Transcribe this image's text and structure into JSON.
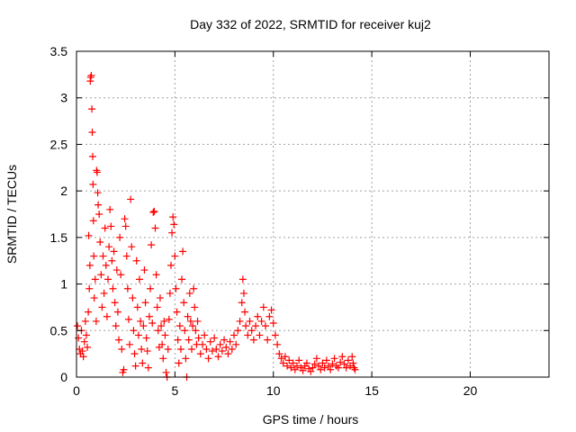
{
  "chart_data": {
    "type": "scatter",
    "title": "Day 332 of 2022, SRMTID for receiver kuj2",
    "xlabel": "GPS time / hours",
    "ylabel": "SRMTID / TECUs",
    "xlim": [
      0,
      24
    ],
    "ylim": [
      0,
      3.5
    ],
    "grid": true,
    "marker": "+",
    "colors": {
      "series": "#ff0000",
      "grid": "#a0a0a0",
      "axis": "#000000"
    },
    "x_ticks": [
      {
        "value": 0,
        "label": "0"
      },
      {
        "value": 5,
        "label": "5"
      },
      {
        "value": 10,
        "label": "10"
      },
      {
        "value": 15,
        "label": "15"
      },
      {
        "value": 20,
        "label": "20"
      }
    ],
    "y_ticks": [
      {
        "value": 0,
        "label": "0"
      },
      {
        "value": 0.5,
        "label": "0.5"
      },
      {
        "value": 1,
        "label": "1"
      },
      {
        "value": 1.5,
        "label": "1.5"
      },
      {
        "value": 2,
        "label": "2"
      },
      {
        "value": 2.5,
        "label": "2.5"
      },
      {
        "value": 3,
        "label": "3"
      },
      {
        "value": 3.5,
        "label": "3.5"
      }
    ],
    "series": [
      {
        "name": "SRMTID",
        "points": [
          [
            0.05,
            0.55
          ],
          [
            0.1,
            0.42
          ],
          [
            0.15,
            0.3
          ],
          [
            0.2,
            0.25
          ],
          [
            0.25,
            0.5
          ],
          [
            0.3,
            0.28
          ],
          [
            0.35,
            0.22
          ],
          [
            0.4,
            0.38
          ],
          [
            0.45,
            0.6
          ],
          [
            0.5,
            0.45
          ],
          [
            0.55,
            0.32
          ],
          [
            0.6,
            0.7
          ],
          [
            0.62,
            1.52
          ],
          [
            0.65,
            0.95
          ],
          [
            0.68,
            1.2
          ],
          [
            0.7,
            3.18
          ],
          [
            0.72,
            3.22
          ],
          [
            0.75,
            3.24
          ],
          [
            0.78,
            2.88
          ],
          [
            0.8,
            2.63
          ],
          [
            0.82,
            2.37
          ],
          [
            0.84,
            2.07
          ],
          [
            0.86,
            1.68
          ],
          [
            0.88,
            1.3
          ],
          [
            0.9,
            0.85
          ],
          [
            0.95,
            1.05
          ],
          [
            1.0,
            0.6
          ],
          [
            1.02,
            2.22
          ],
          [
            1.05,
            2.2
          ],
          [
            1.08,
            1.98
          ],
          [
            1.1,
            1.85
          ],
          [
            1.15,
            1.75
          ],
          [
            1.2,
            1.45
          ],
          [
            1.25,
            1.1
          ],
          [
            1.3,
            0.75
          ],
          [
            1.35,
            1.3
          ],
          [
            1.4,
            0.9
          ],
          [
            1.45,
            1.6
          ],
          [
            1.5,
            1.2
          ],
          [
            1.55,
            0.65
          ],
          [
            1.6,
            1.05
          ],
          [
            1.65,
            1.4
          ],
          [
            1.7,
            1.8
          ],
          [
            1.75,
            1.62
          ],
          [
            1.8,
            1.25
          ],
          [
            1.85,
            0.95
          ],
          [
            1.9,
            1.35
          ],
          [
            1.95,
            0.8
          ],
          [
            2.0,
            0.55
          ],
          [
            2.05,
            1.15
          ],
          [
            2.1,
            0.7
          ],
          [
            2.15,
            0.4
          ],
          [
            2.2,
            1.5
          ],
          [
            2.25,
            1.1
          ],
          [
            2.3,
            0.3
          ],
          [
            2.35,
            0.05
          ],
          [
            2.4,
            0.08
          ],
          [
            2.45,
            1.7
          ],
          [
            2.5,
            1.62
          ],
          [
            2.55,
            1.3
          ],
          [
            2.6,
            0.95
          ],
          [
            2.65,
            0.62
          ],
          [
            2.7,
            0.35
          ],
          [
            2.75,
            1.91
          ],
          [
            2.8,
            1.4
          ],
          [
            2.85,
            0.85
          ],
          [
            2.9,
            0.5
          ],
          [
            2.95,
            0.25
          ],
          [
            3.0,
            0.12
          ],
          [
            3.05,
            1.25
          ],
          [
            3.1,
            0.75
          ],
          [
            3.15,
            0.45
          ],
          [
            3.2,
            1.05
          ],
          [
            3.25,
            0.6
          ],
          [
            3.3,
            0.3
          ],
          [
            3.35,
            0.15
          ],
          [
            3.4,
            0.55
          ],
          [
            3.45,
            1.15
          ],
          [
            3.5,
            0.8
          ],
          [
            3.55,
            0.42
          ],
          [
            3.6,
            0.28
          ],
          [
            3.65,
            0.1
          ],
          [
            3.7,
            0.65
          ],
          [
            3.75,
            0.95
          ],
          [
            3.8,
            1.42
          ],
          [
            3.85,
            0.58
          ],
          [
            3.9,
            1.77
          ],
          [
            3.95,
            1.78
          ],
          [
            4.0,
            1.6
          ],
          [
            4.05,
            1.1
          ],
          [
            4.1,
            0.75
          ],
          [
            4.15,
            0.5
          ],
          [
            4.2,
            0.32
          ],
          [
            4.25,
            0.85
          ],
          [
            4.3,
            0.55
          ],
          [
            4.35,
            0.35
          ],
          [
            4.4,
            0.2
          ],
          [
            4.45,
            0.6
          ],
          [
            4.5,
            0.45
          ],
          [
            4.55,
            0.05
          ],
          [
            4.6,
            0.0
          ],
          [
            4.65,
            0.3
          ],
          [
            4.7,
            0.62
          ],
          [
            4.75,
            0.9
          ],
          [
            4.8,
            1.2
          ],
          [
            4.85,
            1.55
          ],
          [
            4.9,
            1.72
          ],
          [
            4.95,
            1.64
          ],
          [
            5.0,
            1.3
          ],
          [
            5.05,
            0.95
          ],
          [
            5.1,
            0.7
          ],
          [
            5.15,
            0.4
          ],
          [
            5.2,
            0.15
          ],
          [
            5.25,
            0.55
          ],
          [
            5.3,
            0.3
          ],
          [
            5.35,
            1.05
          ],
          [
            5.4,
            1.35
          ],
          [
            5.45,
            0.8
          ],
          [
            5.5,
            0.5
          ],
          [
            5.55,
            0.2
          ],
          [
            5.6,
            0.0
          ],
          [
            5.65,
            0.65
          ],
          [
            5.7,
            0.4
          ],
          [
            5.75,
            0.9
          ],
          [
            5.8,
            0.6
          ],
          [
            5.85,
            0.3
          ],
          [
            5.9,
            0.55
          ],
          [
            5.95,
            0.95
          ],
          [
            6.0,
            0.75
          ],
          [
            6.05,
            0.5
          ],
          [
            6.1,
            0.35
          ],
          [
            6.15,
            0.6
          ],
          [
            6.2,
            0.42
          ],
          [
            6.3,
            0.25
          ],
          [
            6.4,
            0.35
          ],
          [
            6.5,
            0.45
          ],
          [
            6.6,
            0.3
          ],
          [
            6.7,
            0.2
          ],
          [
            6.8,
            0.38
          ],
          [
            6.9,
            0.28
          ],
          [
            7.0,
            0.42
          ],
          [
            7.1,
            0.3
          ],
          [
            7.2,
            0.22
          ],
          [
            7.3,
            0.35
          ],
          [
            7.4,
            0.28
          ],
          [
            7.5,
            0.4
          ],
          [
            7.6,
            0.32
          ],
          [
            7.7,
            0.25
          ],
          [
            7.8,
            0.38
          ],
          [
            7.9,
            0.3
          ],
          [
            8.0,
            0.45
          ],
          [
            8.1,
            0.35
          ],
          [
            8.2,
            0.5
          ],
          [
            8.3,
            0.6
          ],
          [
            8.4,
            0.8
          ],
          [
            8.45,
            1.05
          ],
          [
            8.5,
            0.9
          ],
          [
            8.55,
            0.7
          ],
          [
            8.6,
            0.55
          ],
          [
            8.7,
            0.45
          ],
          [
            8.8,
            0.6
          ],
          [
            8.9,
            0.5
          ],
          [
            9.0,
            0.4
          ],
          [
            9.1,
            0.55
          ],
          [
            9.2,
            0.65
          ],
          [
            9.3,
            0.45
          ],
          [
            9.4,
            0.6
          ],
          [
            9.5,
            0.75
          ],
          [
            9.6,
            0.55
          ],
          [
            9.7,
            0.4
          ],
          [
            9.8,
            0.65
          ],
          [
            9.9,
            0.72
          ],
          [
            10.0,
            0.58
          ],
          [
            10.1,
            0.45
          ],
          [
            10.2,
            0.35
          ],
          [
            10.3,
            0.25
          ],
          [
            10.4,
            0.2
          ],
          [
            10.5,
            0.15
          ],
          [
            10.6,
            0.22
          ],
          [
            10.7,
            0.12
          ],
          [
            10.8,
            0.18
          ],
          [
            10.9,
            0.1
          ],
          [
            11.0,
            0.15
          ],
          [
            11.1,
            0.08
          ],
          [
            11.2,
            0.12
          ],
          [
            11.3,
            0.18
          ],
          [
            11.4,
            0.1
          ],
          [
            11.5,
            0.07
          ],
          [
            11.6,
            0.12
          ],
          [
            11.7,
            0.15
          ],
          [
            11.8,
            0.09
          ],
          [
            11.9,
            0.06
          ],
          [
            12.0,
            0.1
          ],
          [
            12.1,
            0.14
          ],
          [
            12.2,
            0.2
          ],
          [
            12.3,
            0.12
          ],
          [
            12.4,
            0.08
          ],
          [
            12.5,
            0.15
          ],
          [
            12.6,
            0.1
          ],
          [
            12.7,
            0.18
          ],
          [
            12.8,
            0.12
          ],
          [
            12.9,
            0.08
          ],
          [
            13.0,
            0.14
          ],
          [
            13.1,
            0.2
          ],
          [
            13.2,
            0.12
          ],
          [
            13.3,
            0.1
          ],
          [
            13.4,
            0.16
          ],
          [
            13.5,
            0.22
          ],
          [
            13.6,
            0.14
          ],
          [
            13.7,
            0.1
          ],
          [
            13.8,
            0.18
          ],
          [
            13.9,
            0.12
          ],
          [
            14.0,
            0.22
          ],
          [
            14.05,
            0.15
          ],
          [
            14.1,
            0.1
          ],
          [
            14.15,
            0.08
          ]
        ]
      }
    ]
  }
}
